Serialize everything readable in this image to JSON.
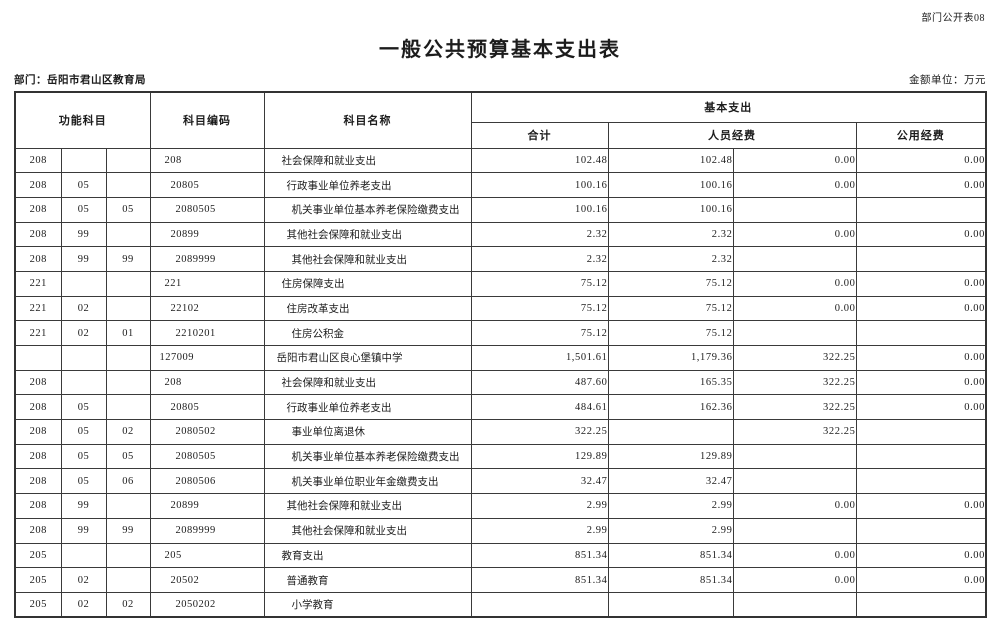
{
  "page": {
    "doc_number": "部门公开表08",
    "title": "一般公共预算基本支出表",
    "department_label": "部门：岳阳市君山区教育局",
    "unit_label": "金额单位：万元"
  },
  "table": {
    "headers": {
      "func_subject": "功能科目",
      "subject_code": "科目编码",
      "subject_name": "科目名称",
      "basic_expenditure": "基本支出",
      "total": "合计",
      "personnel": "人员经费",
      "public_funds": "公用经费"
    },
    "rows": [
      {
        "f1": "208",
        "f2": "",
        "f3": "",
        "code": "208",
        "name": "社会保障和就业支出",
        "level": 1,
        "v1": "102.48",
        "v2": "102.48",
        "v3": "0.00",
        "v4": "0.00"
      },
      {
        "f1": "208",
        "f2": "05",
        "f3": "",
        "code": "20805",
        "name": "行政事业单位养老支出",
        "level": 2,
        "v1": "100.16",
        "v2": "100.16",
        "v3": "0.00",
        "v4": "0.00"
      },
      {
        "f1": "208",
        "f2": "05",
        "f3": "05",
        "code": "2080505",
        "name": "机关事业单位基本养老保险缴费支出",
        "level": 3,
        "v1": "100.16",
        "v2": "100.16",
        "v3": "",
        "v4": ""
      },
      {
        "f1": "208",
        "f2": "99",
        "f3": "",
        "code": "20899",
        "name": "其他社会保障和就业支出",
        "level": 2,
        "v1": "2.32",
        "v2": "2.32",
        "v3": "0.00",
        "v4": "0.00"
      },
      {
        "f1": "208",
        "f2": "99",
        "f3": "99",
        "code": "2089999",
        "name": "其他社会保障和就业支出",
        "level": 3,
        "v1": "2.32",
        "v2": "2.32",
        "v3": "",
        "v4": ""
      },
      {
        "f1": "221",
        "f2": "",
        "f3": "",
        "code": "221",
        "name": "住房保障支出",
        "level": 1,
        "v1": "75.12",
        "v2": "75.12",
        "v3": "0.00",
        "v4": "0.00"
      },
      {
        "f1": "221",
        "f2": "02",
        "f3": "",
        "code": "22102",
        "name": "住房改革支出",
        "level": 2,
        "v1": "75.12",
        "v2": "75.12",
        "v3": "0.00",
        "v4": "0.00"
      },
      {
        "f1": "221",
        "f2": "02",
        "f3": "01",
        "code": "2210201",
        "name": "住房公积金",
        "level": 3,
        "v1": "75.12",
        "v2": "75.12",
        "v3": "",
        "v4": ""
      },
      {
        "f1": "",
        "f2": "",
        "f3": "",
        "code": "127009",
        "name": "岳阳市君山区良心堡镇中学",
        "level": 0,
        "v1": "1,501.61",
        "v2": "1,179.36",
        "v3": "322.25",
        "v4": "0.00"
      },
      {
        "f1": "208",
        "f2": "",
        "f3": "",
        "code": "208",
        "name": "社会保障和就业支出",
        "level": 1,
        "v1": "487.60",
        "v2": "165.35",
        "v3": "322.25",
        "v4": "0.00"
      },
      {
        "f1": "208",
        "f2": "05",
        "f3": "",
        "code": "20805",
        "name": "行政事业单位养老支出",
        "level": 2,
        "v1": "484.61",
        "v2": "162.36",
        "v3": "322.25",
        "v4": "0.00"
      },
      {
        "f1": "208",
        "f2": "05",
        "f3": "02",
        "code": "2080502",
        "name": "事业单位离退休",
        "level": 3,
        "v1": "322.25",
        "v2": "",
        "v3": "322.25",
        "v4": ""
      },
      {
        "f1": "208",
        "f2": "05",
        "f3": "05",
        "code": "2080505",
        "name": "机关事业单位基本养老保险缴费支出",
        "level": 3,
        "v1": "129.89",
        "v2": "129.89",
        "v3": "",
        "v4": ""
      },
      {
        "f1": "208",
        "f2": "05",
        "f3": "06",
        "code": "2080506",
        "name": "机关事业单位职业年金缴费支出",
        "level": 3,
        "v1": "32.47",
        "v2": "32.47",
        "v3": "",
        "v4": ""
      },
      {
        "f1": "208",
        "f2": "99",
        "f3": "",
        "code": "20899",
        "name": "其他社会保障和就业支出",
        "level": 2,
        "v1": "2.99",
        "v2": "2.99",
        "v3": "0.00",
        "v4": "0.00"
      },
      {
        "f1": "208",
        "f2": "99",
        "f3": "99",
        "code": "2089999",
        "name": "其他社会保障和就业支出",
        "level": 3,
        "v1": "2.99",
        "v2": "2.99",
        "v3": "",
        "v4": ""
      },
      {
        "f1": "205",
        "f2": "",
        "f3": "",
        "code": "205",
        "name": "教育支出",
        "level": 1,
        "v1": "851.34",
        "v2": "851.34",
        "v3": "0.00",
        "v4": "0.00"
      },
      {
        "f1": "205",
        "f2": "02",
        "f3": "",
        "code": "20502",
        "name": "普通教育",
        "level": 2,
        "v1": "851.34",
        "v2": "851.34",
        "v3": "0.00",
        "v4": "0.00"
      },
      {
        "f1": "205",
        "f2": "02",
        "f3": "02",
        "code": "2050202",
        "name": "小学教育",
        "level": 3,
        "v1": "",
        "v2": "",
        "v3": "",
        "v4": ""
      }
    ]
  }
}
